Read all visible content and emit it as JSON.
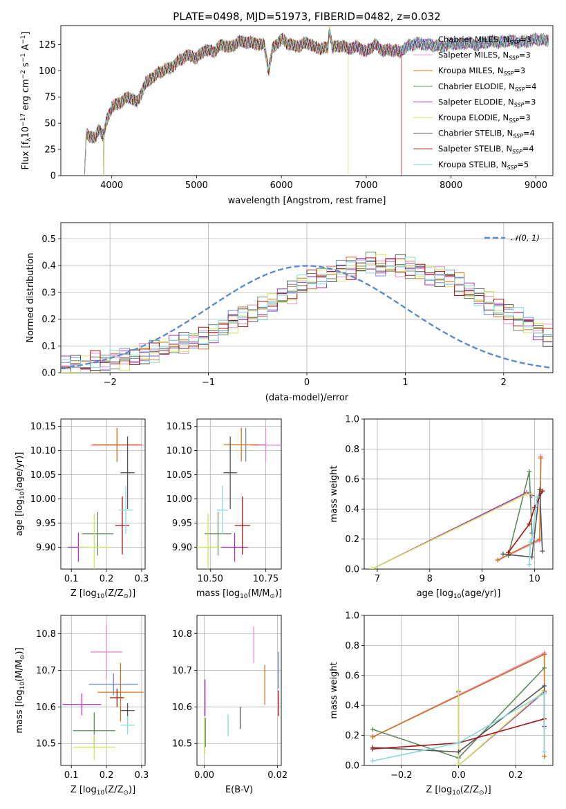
{
  "chart_data": [
    {
      "id": "spectrum",
      "type": "line",
      "title": "PLATE=0498, MJD=51973, FIBERID=0482, z=0.032",
      "xlabel": "wavelength [Angstrom, rest frame]",
      "ylabel": "Flux [f_λ10^-17 erg cm^-2 s^-1 A^-1]",
      "xlim": [
        3400,
        9200
      ],
      "ylim": [
        0,
        143
      ],
      "xticks": [
        4000,
        5000,
        6000,
        7000,
        8000,
        9000
      ],
      "yticks": [
        0,
        25,
        50,
        75,
        100,
        125
      ],
      "legend_position": "right",
      "spectrum": {
        "x": [
          3680,
          3700,
          3800,
          3850,
          3900,
          3950,
          4000,
          4100,
          4200,
          4300,
          4400,
          4500,
          4600,
          4700,
          4800,
          4900,
          5000,
          5100,
          5200,
          5300,
          5400,
          5500,
          5600,
          5700,
          5800,
          5850,
          5900,
          6000,
          6100,
          6200,
          6300,
          6400,
          6500,
          6550,
          6565,
          6600,
          6700,
          6800,
          6900,
          7000,
          7100,
          7200,
          7300,
          7400,
          7500,
          7600,
          7700,
          7800,
          7900,
          8000,
          8100,
          8200,
          8300,
          8400,
          8500,
          8600,
          8700,
          8800,
          8900,
          9000,
          9100
        ],
        "y": [
          0,
          40,
          35,
          45,
          38,
          55,
          65,
          70,
          75,
          70,
          88,
          95,
          100,
          103,
          110,
          115,
          112,
          120,
          118,
          125,
          122,
          128,
          127,
          126,
          124,
          100,
          122,
          130,
          125,
          123,
          127,
          122,
          121,
          123,
          140,
          122,
          124,
          121,
          123,
          118,
          125,
          119,
          120,
          118,
          124,
          126,
          125,
          124,
          123,
          126,
          125,
          127,
          124,
          127,
          128,
          127,
          129,
          127,
          128,
          130,
          129
        ]
      },
      "dropouts": [
        {
          "series": "Kroupa ELODIE, N_SSP=3",
          "x": 3905
        },
        {
          "series": "Salpeter ELODIE, N_SSP=3",
          "x": 3905
        },
        {
          "series": "Kroupa ELODIE, N_SSP=3",
          "x": 6790
        },
        {
          "series": "Salpeter STELIB, N_SSP=4",
          "x": 7415
        }
      ],
      "series": [
        {
          "name": "Chabrier MILES, N_SSP=3"
        },
        {
          "name": "Salpeter MILES, N_SSP=3"
        },
        {
          "name": "Kroupa MILES, N_SSP=3"
        },
        {
          "name": "Chabrier ELODIE, N_SSP=4"
        },
        {
          "name": "Salpeter ELODIE, N_SSP=3"
        },
        {
          "name": "Kroupa ELODIE, N_SSP=3"
        },
        {
          "name": "Chabrier STELIB, N_SSP=4"
        },
        {
          "name": "Salpeter STELIB, N_SSP=4"
        },
        {
          "name": "Kroupa STELIB, N_SSP=5"
        }
      ]
    },
    {
      "id": "residuals",
      "type": "line",
      "xlabel": "(data-model)/error",
      "ylabel": "Normed distribution",
      "xlim": [
        -2.5,
        2.5
      ],
      "ylim": [
        0,
        0.56
      ],
      "xticks": [
        -2,
        -1,
        0,
        1,
        2
      ],
      "yticks": [
        0.0,
        0.1,
        0.2,
        0.3,
        0.4,
        0.5
      ],
      "grid": true,
      "legend_position": "top-right",
      "reference_curve": {
        "name": "𝒩(0, 1)",
        "mean": 0,
        "sigma": 1
      },
      "histogram_bins": {
        "start": -2.5,
        "width": 0.1,
        "count": 50
      },
      "histogram_values": [
        0.02,
        0.03,
        0.03,
        0.04,
        0.04,
        0.05,
        0.05,
        0.06,
        0.07,
        0.08,
        0.09,
        0.1,
        0.11,
        0.12,
        0.13,
        0.15,
        0.17,
        0.19,
        0.21,
        0.22,
        0.24,
        0.26,
        0.28,
        0.3,
        0.33,
        0.35,
        0.36,
        0.37,
        0.38,
        0.39,
        0.4,
        0.41,
        0.4,
        0.4,
        0.4,
        0.39,
        0.38,
        0.37,
        0.36,
        0.35,
        0.33,
        0.3,
        0.28,
        0.26,
        0.24,
        0.22,
        0.2,
        0.18,
        0.16,
        0.14
      ],
      "series": []
    },
    {
      "id": "age_vs_Z",
      "type": "scatter",
      "xlabel": "Z [log10(Z/Z⊙)]",
      "ylabel": "age [log10(age/yr)]",
      "xlim": [
        0.07,
        0.31
      ],
      "ylim": [
        9.855,
        10.165
      ],
      "xticks": [
        0.1,
        0.2,
        0.3
      ],
      "yticks": [
        9.9,
        9.95,
        10.0,
        10.05,
        10.1,
        10.15
      ],
      "grid": true,
      "points": [
        {
          "series": 0,
          "x": 0.23,
          "y": 10.112,
          "xerr": 0.07,
          "yerr": 0.035
        },
        {
          "series": 1,
          "x": 0.23,
          "y": 10.111,
          "xerr": 0.075,
          "yerr": 0.035
        },
        {
          "series": 2,
          "x": 0.23,
          "y": 10.112,
          "xerr": 0.07,
          "yerr": 0.035
        },
        {
          "series": 3,
          "x": 0.175,
          "y": 9.928,
          "xerr": 0.045,
          "yerr": 0.045
        },
        {
          "series": 4,
          "x": 0.12,
          "y": 9.9,
          "xerr": 0.03,
          "yerr": 0.03
        },
        {
          "series": 5,
          "x": 0.165,
          "y": 9.9,
          "xerr": 0.045,
          "yerr": 0.07
        },
        {
          "series": 6,
          "x": 0.26,
          "y": 10.054,
          "xerr": 0.02,
          "yerr": 0.075
        },
        {
          "series": 7,
          "x": 0.245,
          "y": 9.945,
          "xerr": 0.02,
          "yerr": 0.06
        },
        {
          "series": 8,
          "x": 0.255,
          "y": 9.977,
          "xerr": 0.02,
          "yerr": 0.05
        }
      ]
    },
    {
      "id": "age_vs_mass",
      "type": "scatter",
      "xlabel": "mass [log10(M/M⊙)]",
      "ylabel": "",
      "xlim": [
        10.44,
        10.82
      ],
      "ylim": [
        9.855,
        10.165
      ],
      "xticks": [
        10.5,
        10.75
      ],
      "yticks": [
        9.9,
        9.95,
        10.0,
        10.05,
        10.1,
        10.15
      ],
      "grid": true,
      "points": [
        {
          "series": 0,
          "x": 10.66,
          "y": 10.112,
          "xerr": 0.09,
          "yerr": 0.035
        },
        {
          "series": 1,
          "x": 10.75,
          "y": 10.111,
          "xerr": 0.07,
          "yerr": 0.035
        },
        {
          "series": 2,
          "x": 10.64,
          "y": 10.112,
          "xerr": 0.08,
          "yerr": 0.035
        },
        {
          "series": 3,
          "x": 10.535,
          "y": 9.928,
          "xerr": 0.06,
          "yerr": 0.045
        },
        {
          "series": 4,
          "x": 10.61,
          "y": 9.9,
          "xerr": 0.06,
          "yerr": 0.03
        },
        {
          "series": 5,
          "x": 10.49,
          "y": 9.9,
          "xerr": 0.06,
          "yerr": 0.07
        },
        {
          "series": 6,
          "x": 10.59,
          "y": 10.054,
          "xerr": 0.03,
          "yerr": 0.075
        },
        {
          "series": 7,
          "x": 10.645,
          "y": 9.945,
          "xerr": 0.035,
          "yerr": 0.06
        },
        {
          "series": 8,
          "x": 10.555,
          "y": 9.977,
          "xerr": 0.025,
          "yerr": 0.05
        }
      ]
    },
    {
      "id": "weight_vs_age",
      "type": "line",
      "xlabel": "age [log10(age/yr)]",
      "ylabel": "mass weight",
      "xlim": [
        6.75,
        10.35
      ],
      "ylim": [
        0,
        1.0
      ],
      "xticks": [
        7,
        8,
        9,
        10
      ],
      "yticks": [
        0.0,
        0.2,
        0.4,
        0.6,
        0.8,
        1.0
      ],
      "grid": true,
      "lines": [
        {
          "series": 0,
          "x": [
            9.3,
            10.1,
            10.12
          ],
          "y": [
            0.06,
            0.2,
            0.74
          ]
        },
        {
          "series": 1,
          "x": [
            9.3,
            10.1,
            10.12
          ],
          "y": [
            0.06,
            0.19,
            0.75
          ]
        },
        {
          "series": 2,
          "x": [
            9.3,
            10.1,
            10.12
          ],
          "y": [
            0.06,
            0.2,
            0.74
          ]
        },
        {
          "series": 3,
          "x": [
            9.5,
            9.9,
            9.95
          ],
          "y": [
            0.09,
            0.65,
            0.24
          ]
        },
        {
          "series": 4,
          "x": [
            6.9,
            9.85,
            9.95
          ],
          "y": [
            0.0,
            0.51,
            0.49
          ]
        },
        {
          "series": 5,
          "x": [
            6.9,
            9.85,
            9.95
          ],
          "y": [
            0.0,
            0.5,
            0.5
          ]
        },
        {
          "series": 6,
          "x": [
            9.4,
            9.95,
            10.1,
            10.15
          ],
          "y": [
            0.1,
            0.08,
            0.53,
            0.12
          ]
        },
        {
          "series": 7,
          "x": [
            9.5,
            9.9,
            10.0,
            10.15
          ],
          "y": [
            0.11,
            0.3,
            0.41,
            0.52
          ]
        },
        {
          "series": 8,
          "x": [
            9.9,
            9.92,
            9.95,
            10.05
          ],
          "y": [
            0.03,
            0.18,
            0.2,
            0.48
          ]
        }
      ]
    },
    {
      "id": "mass_vs_Z",
      "type": "scatter",
      "xlabel": "Z [log10(Z/Z⊙)]",
      "ylabel": "mass [log10(M/M⊙)]",
      "xlim": [
        0.07,
        0.31
      ],
      "ylim": [
        10.44,
        10.85
      ],
      "xticks": [
        0.1,
        0.2,
        0.3
      ],
      "yticks": [
        10.5,
        10.6,
        10.7,
        10.8
      ],
      "grid": true,
      "points": [
        {
          "series": 0,
          "x": 0.22,
          "y": 10.662,
          "xerr": 0.07,
          "yerr": 0.03
        },
        {
          "series": 1,
          "x": 0.2,
          "y": 10.75,
          "xerr": 0.045,
          "yerr": 0.075
        },
        {
          "series": 2,
          "x": 0.24,
          "y": 10.64,
          "xerr": 0.065,
          "yerr": 0.08
        },
        {
          "series": 3,
          "x": 0.165,
          "y": 10.535,
          "xerr": 0.06,
          "yerr": 0.05
        },
        {
          "series": 4,
          "x": 0.13,
          "y": 10.607,
          "xerr": 0.055,
          "yerr": 0.03
        },
        {
          "series": 5,
          "x": 0.165,
          "y": 10.49,
          "xerr": 0.06,
          "yerr": 0.035
        },
        {
          "series": 6,
          "x": 0.26,
          "y": 10.59,
          "xerr": 0.02,
          "yerr": 0.02
        },
        {
          "series": 7,
          "x": 0.23,
          "y": 10.625,
          "xerr": 0.02,
          "yerr": 0.025
        },
        {
          "series": 8,
          "x": 0.26,
          "y": 10.55,
          "xerr": 0.02,
          "yerr": 0.025
        }
      ]
    },
    {
      "id": "mass_vs_EBV",
      "type": "scatter",
      "xlabel": "E(B-V)",
      "ylabel": "",
      "xlim": [
        -0.002,
        0.021
      ],
      "ylim": [
        10.44,
        10.85
      ],
      "xticks": [
        0.0,
        0.02
      ],
      "yticks": [
        10.5,
        10.6,
        10.7,
        10.8
      ],
      "grid": true,
      "points": [
        {
          "series": 0,
          "x": 0.0202,
          "y": 10.7,
          "yerr": 0.05
        },
        {
          "series": 1,
          "x": 0.0135,
          "y": 10.77,
          "yerr": 0.05
        },
        {
          "series": 2,
          "x": 0.0165,
          "y": 10.66,
          "yerr": 0.055
        },
        {
          "series": 3,
          "x": 0.0003,
          "y": 10.53,
          "yerr": 0.04
        },
        {
          "series": 4,
          "x": 0.0002,
          "y": 10.625,
          "yerr": 0.05
        },
        {
          "series": 5,
          "x": 0.0001,
          "y": 10.52,
          "yerr": 0.05
        },
        {
          "series": 6,
          "x": 0.0098,
          "y": 10.57,
          "yerr": 0.03
        },
        {
          "series": 7,
          "x": 0.0202,
          "y": 10.61,
          "yerr": 0.035
        },
        {
          "series": 8,
          "x": 0.0065,
          "y": 10.55,
          "yerr": 0.03
        }
      ]
    },
    {
      "id": "weight_vs_Z",
      "type": "line",
      "xlabel": "Z [log10(Z/Z⊙)]",
      "ylabel": "mass weight",
      "xlim": [
        -0.33,
        0.33
      ],
      "ylim": [
        0,
        1.0
      ],
      "xticks": [
        -0.2,
        0.0,
        0.2
      ],
      "yticks": [
        0.0,
        0.2,
        0.4,
        0.6,
        0.8,
        1.0
      ],
      "grid": true,
      "lines": [
        {
          "series": 0,
          "x": [
            -0.3,
            0.3
          ],
          "y": [
            0.19,
            0.74
          ]
        },
        {
          "series": 1,
          "x": [
            -0.3,
            0.3
          ],
          "y": [
            0.19,
            0.75
          ]
        },
        {
          "series": 2,
          "x": [
            -0.3,
            0.3,
            0.3
          ],
          "y": [
            0.19,
            0.74,
            0.06
          ]
        },
        {
          "series": 3,
          "x": [
            -0.3,
            0.0,
            0.3
          ],
          "y": [
            0.24,
            0.05,
            0.65
          ]
        },
        {
          "series": 4,
          "x": [
            0.0,
            0.0,
            0.3
          ],
          "y": [
            0.49,
            0.0,
            0.49
          ]
        },
        {
          "series": 5,
          "x": [
            0.0,
            0.0,
            0.3
          ],
          "y": [
            0.5,
            0.0,
            0.5
          ]
        },
        {
          "series": 6,
          "x": [
            -0.3,
            0.0,
            0.3,
            0.3
          ],
          "y": [
            0.12,
            0.09,
            0.53,
            0.26
          ]
        },
        {
          "series": 7,
          "x": [
            -0.3,
            0.0,
            0.3
          ],
          "y": [
            0.11,
            0.15,
            0.31
          ]
        },
        {
          "series": 8,
          "x": [
            -0.3,
            0.0,
            0.3,
            0.3
          ],
          "y": [
            0.03,
            0.15,
            0.48,
            0.09
          ]
        }
      ]
    }
  ],
  "colors": {
    "series": [
      "#6a88d8",
      "#ee88c6",
      "#d47519",
      "#5f8a5f",
      "#a330c9",
      "#cfe35b",
      "#555555",
      "#aa1111",
      "#84dada"
    ],
    "normal": "#5b8ad2",
    "grid": "#b0b0b0"
  }
}
